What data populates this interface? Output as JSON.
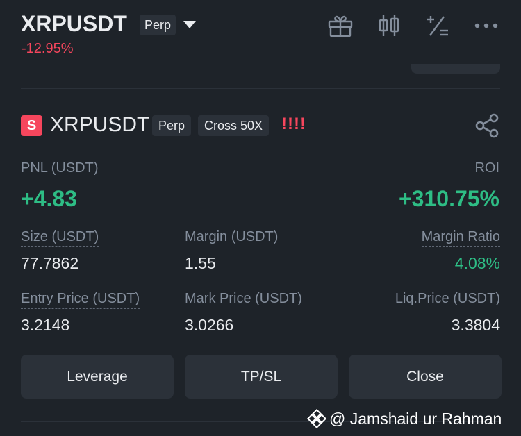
{
  "header": {
    "symbol": "XRPUSDT",
    "contract_tag": "Perp",
    "change_pct": "-12.95%",
    "icons": [
      "gift-icon",
      "candlestick-icon",
      "calculator-icon",
      "more-icon"
    ]
  },
  "position": {
    "badge": "S",
    "symbol": "XRPUSDT",
    "contract_tag": "Perp",
    "margin_tag": "Cross 50X",
    "warning": "!!!!",
    "share_icon": "share-icon",
    "pnl_label": "PNL (USDT)",
    "pnl_value": "+4.83",
    "roi_label": "ROI",
    "roi_value": "+310.75%",
    "size_label": "Size (USDT)",
    "size_value": "77.7862",
    "margin_label": "Margin (USDT)",
    "margin_value": "1.55",
    "margin_ratio_label": "Margin Ratio",
    "margin_ratio_value": "4.08%",
    "entry_label": "Entry Price (USDT)",
    "entry_value": "3.2148",
    "mark_label": "Mark Price (USDT)",
    "mark_value": "3.0266",
    "liq_label": "Liq.Price (USDT)",
    "liq_value": "3.3804"
  },
  "actions": {
    "leverage": "Leverage",
    "tpsl": "TP/SL",
    "close": "Close"
  },
  "watermark": {
    "text": "@ Jamshaid ur Rahman"
  },
  "colors": {
    "background": "#1e2329",
    "surface": "#2b3139",
    "red": "#f6465d",
    "green": "#2ebd85",
    "muted": "#848e9c"
  }
}
